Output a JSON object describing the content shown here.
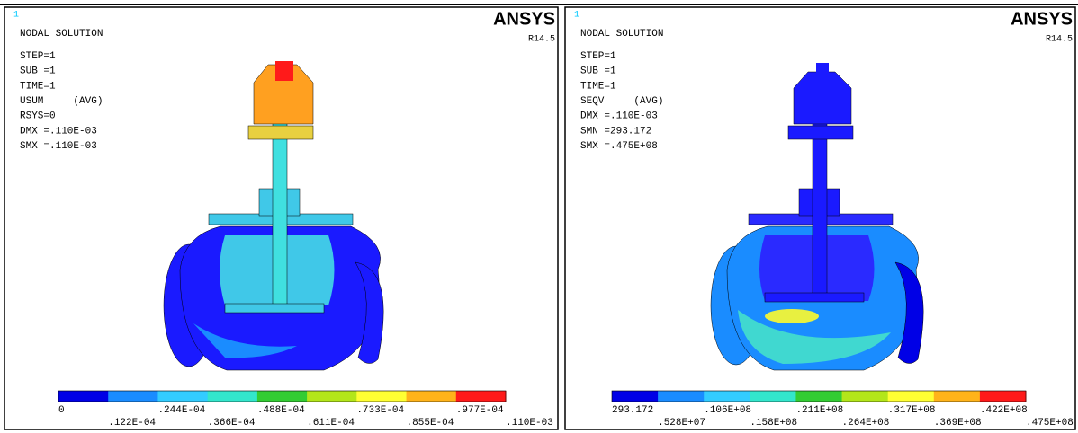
{
  "panels": [
    {
      "corner": "1",
      "title": "NODAL SOLUTION",
      "info": [
        "STEP=1",
        "SUB =1",
        "TIME=1",
        "USUM     (AVG)",
        "RSYS=0",
        "DMX =.110E-03",
        "SMX =.110E-03"
      ],
      "logo": "ANSYS",
      "version": "R14.5",
      "colorbar": {
        "labels": [
          "0",
          ".122E-04",
          ".244E-04",
          ".366E-04",
          ".488E-04",
          ".611E-04",
          ".733E-04",
          ".855E-04",
          ".977E-04",
          ".110E-03"
        ]
      }
    },
    {
      "corner": "1",
      "title": "NODAL SOLUTION",
      "info": [
        "STEP=1",
        "SUB =1",
        "TIME=1",
        "SEQV     (AVG)",
        "DMX =.110E-03",
        "SMN =293.172",
        "SMX =.475E+08"
      ],
      "logo": "ANSYS",
      "version": "R14.5",
      "colorbar": {
        "labels": [
          "293.172",
          ".528E+07",
          ".106E+08",
          ".158E+08",
          ".211E+08",
          ".264E+08",
          ".317E+08",
          ".369E+08",
          ".422E+08",
          ".475E+08"
        ]
      }
    }
  ],
  "colorbar_colors": [
    "#0000e6",
    "#1a8cff",
    "#33ccff",
    "#33e6cc",
    "#33cc33",
    "#b3e61a",
    "#ffff33",
    "#ffb31a",
    "#ff1a1a"
  ]
}
